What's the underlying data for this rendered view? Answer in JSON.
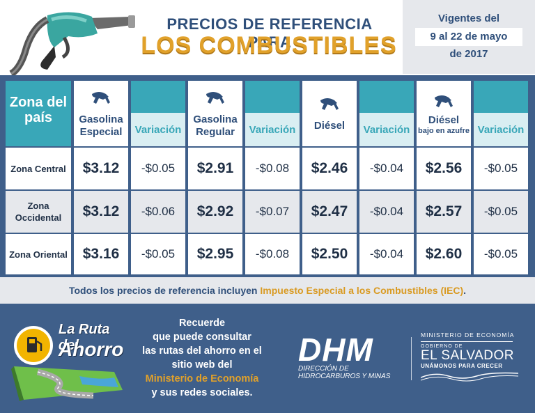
{
  "header": {
    "title_line1": "PRECIOS DE REFERENCIA PARA",
    "title_line2": "LOS COMBUSTIBLES"
  },
  "validity": {
    "line1": "Vigentes del",
    "dates": "9 al 22 de mayo",
    "year": "de 2017"
  },
  "table": {
    "zone_header": "Zona del país",
    "fuels": [
      {
        "name": "Gasolina Especial",
        "sub": "",
        "icon": "fuel-nozzle-icon"
      },
      {
        "name": "Gasolina Regular",
        "sub": "",
        "icon": "fuel-nozzle-icon"
      },
      {
        "name": "Diésel",
        "sub": "",
        "icon": "fuel-nozzle-icon"
      },
      {
        "name": "Diésel",
        "sub": "bajo en azufre",
        "icon": "fuel-nozzle-icon"
      }
    ],
    "variation_label": "Variación",
    "rows": [
      {
        "zone": "Zona Central",
        "values": [
          [
            "$3.12",
            "-$0.05"
          ],
          [
            "$2.91",
            "-$0.08"
          ],
          [
            "$2.46",
            "-$0.04"
          ],
          [
            "$2.56",
            "-$0.05"
          ]
        ]
      },
      {
        "zone": "Zona Occidental",
        "values": [
          [
            "$3.12",
            "-$0.06"
          ],
          [
            "$2.92",
            "-$0.07"
          ],
          [
            "$2.47",
            "-$0.04"
          ],
          [
            "$2.57",
            "-$0.05"
          ]
        ]
      },
      {
        "zone": "Zona Oriental",
        "values": [
          [
            "$3.16",
            "-$0.05"
          ],
          [
            "$2.95",
            "-$0.08"
          ],
          [
            "$2.50",
            "-$0.04"
          ],
          [
            "$2.60",
            "-$0.05"
          ]
        ]
      }
    ]
  },
  "note": {
    "prefix": "Todos los precios de referencia incluyen ",
    "highlight": "Impuesto Especial a los Combustibles (IEC)",
    "suffix": "."
  },
  "footer": {
    "ruta_line1": "La Ruta del",
    "ruta_line2": "Ahorro",
    "message_lines": [
      "Recuerde",
      "que puede consultar",
      "las rutas del ahorro en el",
      "sitio web del"
    ],
    "message_highlight": "Ministerio de Economía",
    "message_end": "y sus redes sociales.",
    "dhm_logo": "DHM",
    "dhm_sub1": "DIRECCIÓN DE",
    "dhm_sub2": "HIDROCARBUROS Y MINAS",
    "gov_ministry": "MINISTERIO DE ECONOMÍA",
    "gov_gobierno": "GOBIERNO DE",
    "gov_country": "EL SALVADOR",
    "gov_slogan": "UNÁMONOS PARA CRECER"
  },
  "colors": {
    "navy": "#2f4f7a",
    "gold": "#e1a12a",
    "teal": "#39a7b8",
    "band": "#3f5f8a",
    "light_gray": "#e6e8ec"
  }
}
